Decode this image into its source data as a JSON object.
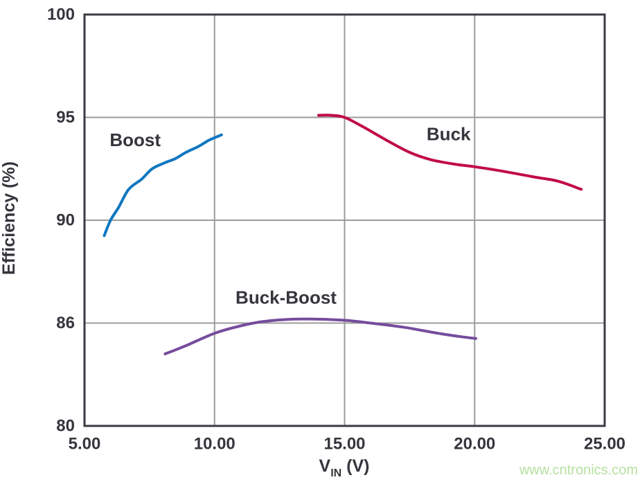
{
  "watermark": {
    "text": "www.cntronics.com",
    "color": "#b7e0a0"
  },
  "chart_data": {
    "type": "line",
    "title": "",
    "xlabel": {
      "main": "V",
      "sub": "IN",
      "rest": " (V)"
    },
    "ylabel": "Efficiency (%)",
    "xlim": [
      5,
      25
    ],
    "x_ticks": [
      "5.00",
      "10.00",
      "15.00",
      "20.00",
      "25.00"
    ],
    "x_tick_values": [
      5,
      10,
      15,
      20,
      25
    ],
    "y_ticks": [
      "80",
      "86",
      "90",
      "95",
      "100"
    ],
    "y_tick_values": [
      80,
      86,
      90,
      95,
      100
    ],
    "y_axis_note": "tick labels printed 80, 86, 90, 95, 100 on evenly spaced gridlines",
    "grid": true,
    "legend_position": "inline-labels",
    "colors": {
      "frame": "#3a3a42",
      "grid": "#9b9b9b",
      "text": "#35353d"
    },
    "series": [
      {
        "name": "Boost",
        "color": "#0f77c0",
        "label_at": [
          6.95,
          93.9
        ],
        "points": [
          [
            5.76,
            89.4
          ],
          [
            6.0,
            90.0
          ],
          [
            6.3,
            90.6
          ],
          [
            6.7,
            91.5
          ],
          [
            7.2,
            92.0
          ],
          [
            7.6,
            92.5
          ],
          [
            8.1,
            92.8
          ],
          [
            8.5,
            93.0
          ],
          [
            8.9,
            93.3
          ],
          [
            9.4,
            93.6
          ],
          [
            9.8,
            93.9
          ],
          [
            10.27,
            94.15
          ]
        ]
      },
      {
        "name": "Buck",
        "color": "#c10b45",
        "label_at": [
          19.0,
          94.2
        ],
        "points": [
          [
            14.0,
            95.1
          ],
          [
            14.5,
            95.1
          ],
          [
            15.0,
            95.0
          ],
          [
            15.7,
            94.55
          ],
          [
            16.6,
            93.9
          ],
          [
            17.5,
            93.3
          ],
          [
            18.3,
            92.95
          ],
          [
            19.2,
            92.73
          ],
          [
            20.0,
            92.6
          ],
          [
            21.0,
            92.4
          ],
          [
            22.3,
            92.1
          ],
          [
            23.2,
            91.9
          ],
          [
            24.1,
            91.5
          ]
        ]
      },
      {
        "name": "Buck-Boost",
        "color": "#764c9d",
        "label_at": [
          12.75,
          87.0
        ],
        "points": [
          [
            8.1,
            84.2
          ],
          [
            8.85,
            84.65
          ],
          [
            10.0,
            85.4
          ],
          [
            10.9,
            85.8
          ],
          [
            11.8,
            86.05
          ],
          [
            13.0,
            86.15
          ],
          [
            14.0,
            86.15
          ],
          [
            15.1,
            86.1
          ],
          [
            16.0,
            86.0
          ],
          [
            17.3,
            85.75
          ],
          [
            18.6,
            85.4
          ],
          [
            19.5,
            85.2
          ],
          [
            20.05,
            85.1
          ]
        ]
      }
    ]
  }
}
